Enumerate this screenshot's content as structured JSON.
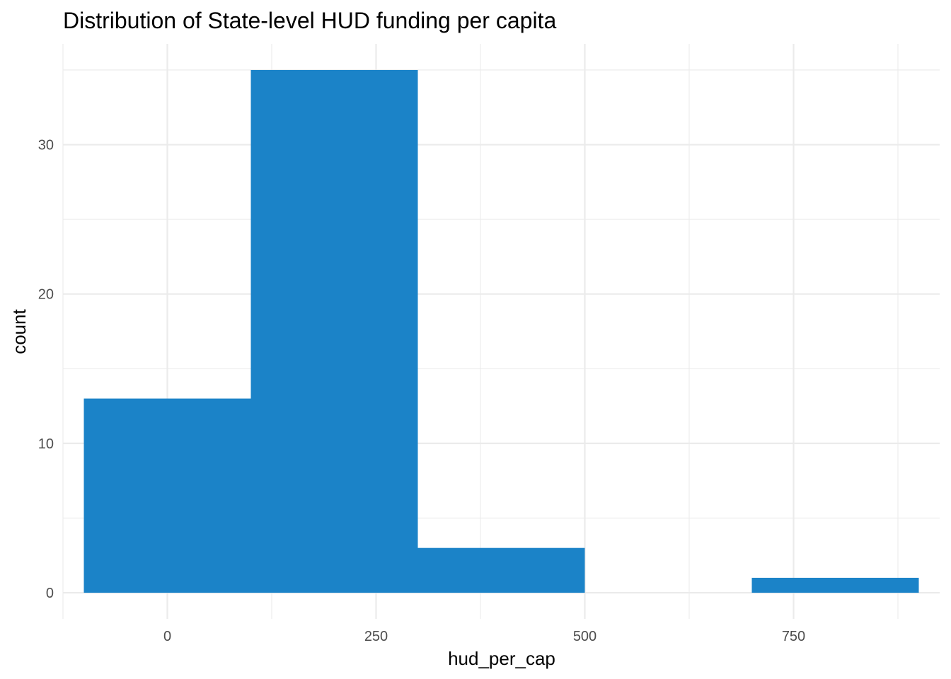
{
  "chart_data": {
    "type": "histogram",
    "title": "Distribution of State-level HUD funding per capita",
    "xlabel": "hud_per_cap",
    "ylabel": "count",
    "bar_color": "#1b83c8",
    "background": "#ffffff",
    "grid_color": "#ebebeb",
    "xlim": [
      -125,
      925
    ],
    "ylim": [
      -1.75,
      36.75
    ],
    "x_major_ticks": [
      0,
      250,
      500,
      750
    ],
    "x_major_tick_labels": [
      "0",
      "250",
      "500",
      "750"
    ],
    "x_minor_ticks": [
      -125,
      125,
      375,
      625,
      875
    ],
    "y_major_ticks": [
      0,
      10,
      20,
      30
    ],
    "y_major_tick_labels": [
      "0",
      "10",
      "20",
      "30"
    ],
    "y_minor_ticks": [
      5,
      15,
      25,
      35
    ],
    "bins": [
      {
        "x_min": -100,
        "x_max": 100,
        "count": 13
      },
      {
        "x_min": 100,
        "x_max": 300,
        "count": 35
      },
      {
        "x_min": 300,
        "x_max": 500,
        "count": 3
      },
      {
        "x_min": 500,
        "x_max": 700,
        "count": 0
      },
      {
        "x_min": 700,
        "x_max": 900,
        "count": 1
      }
    ]
  }
}
